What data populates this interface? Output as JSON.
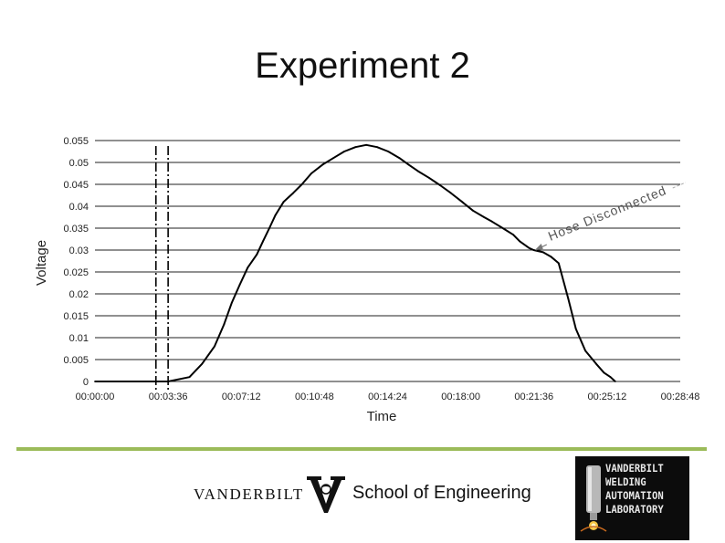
{
  "slide": {
    "title": "Experiment 2"
  },
  "chart_data": {
    "type": "line",
    "title": "",
    "xlabel": "Time",
    "ylabel": "Voltage",
    "xlim": [
      "00:00:00",
      "00:28:48"
    ],
    "ylim": [
      0,
      0.055
    ],
    "grid": "horizontal",
    "x_ticks": [
      "00:00:00",
      "00:03:36",
      "00:07:12",
      "00:10:48",
      "00:14:24",
      "00:18:00",
      "00:21:36",
      "00:25:12",
      "00:28:48"
    ],
    "y_ticks": [
      "0",
      "0.005",
      "0.01",
      "0.015",
      "0.02",
      "0.025",
      "0.03",
      "0.035",
      "0.04",
      "0.045",
      "0.05",
      "0.055"
    ],
    "series": [
      {
        "x": [
          "00:00:00",
          "00:03:36",
          "00:04:39",
          "00:05:16",
          "00:05:53",
          "00:06:21",
          "00:06:44",
          "00:07:07",
          "00:07:31",
          "00:07:58",
          "00:08:16",
          "00:08:35",
          "00:08:53",
          "00:09:17",
          "00:09:31",
          "00:09:45",
          "00:10:11",
          "00:10:39",
          "00:11:12",
          "00:11:44",
          "00:12:16",
          "00:12:49",
          "00:13:21",
          "00:13:53",
          "00:14:26",
          "00:14:59",
          "00:15:26",
          "00:15:54",
          "00:16:26",
          "00:16:59",
          "00:17:31",
          "00:18:04",
          "00:18:36",
          "00:19:09",
          "00:19:32",
          "00:20:04",
          "00:20:35",
          "00:20:54",
          "00:21:21",
          "00:21:35",
          "00:22:03",
          "00:22:26",
          "00:22:49",
          "00:23:17",
          "00:23:40",
          "00:24:08",
          "00:24:40",
          "00:25:03",
          "00:25:22",
          "00:25:36"
        ],
        "y": [
          0,
          0,
          0.001,
          0.004,
          0.008,
          0.013,
          0.018,
          0.022,
          0.026,
          0.029,
          0.032,
          0.035,
          0.038,
          0.041,
          0.042,
          0.043,
          0.045,
          0.0475,
          0.0495,
          0.051,
          0.0525,
          0.0535,
          0.054,
          0.0535,
          0.0525,
          0.051,
          0.0495,
          0.048,
          0.0465,
          0.0448,
          0.043,
          0.041,
          0.039,
          0.0375,
          0.0365,
          0.035,
          0.0335,
          0.032,
          0.0305,
          0.03,
          0.0295,
          0.0285,
          0.027,
          0.019,
          0.012,
          0.007,
          0.004,
          0.002,
          0.001,
          0
        ]
      }
    ],
    "markers": [
      {
        "x": "00:03:00"
      },
      {
        "x": "00:03:36"
      }
    ],
    "annotations": [
      {
        "text": "Hose Disconnected",
        "x": "00:21:36",
        "y": 0.03
      }
    ]
  },
  "logos": {
    "vanderbilt_wordmark": "VANDERBILT",
    "school": "School of Engineering",
    "lab_lines": [
      "VANDERBILT",
      "WELDING",
      "AUTOMATION",
      "LABORATORY"
    ]
  },
  "colors": {
    "divider": "#9bbb59",
    "line": "#000000",
    "grid": "#222222",
    "vu_gold": "#c8a45b"
  }
}
